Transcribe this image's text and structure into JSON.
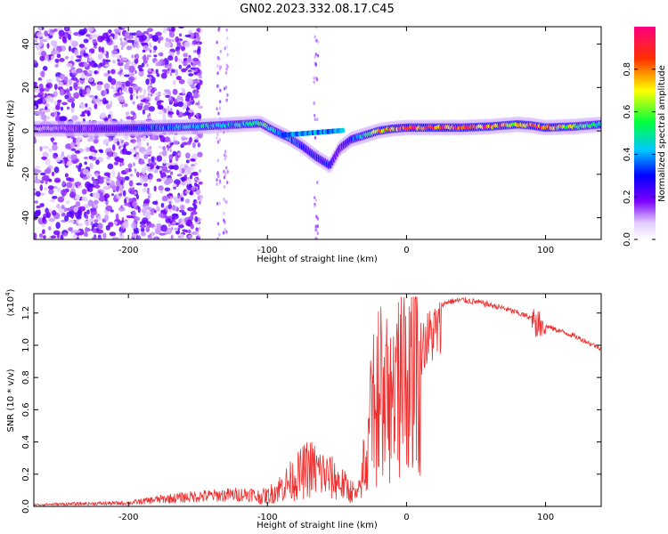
{
  "figure_title": "GN02.2023.332.08.17.C45",
  "chart_data": [
    {
      "type": "heatmap",
      "title": "GN02.2023.332.08.17.C45",
      "xlabel": "Height of straight line (km)",
      "ylabel": "Frequency (Hz)",
      "xlim": [
        -268,
        140
      ],
      "ylim": [
        -50,
        48
      ],
      "x_ticks": [
        -200,
        -100,
        0,
        100
      ],
      "y_ticks": [
        -40,
        -20,
        0,
        20,
        40
      ],
      "grid": false,
      "colorbar": {
        "label": "Normalized spectral amplitude",
        "range": [
          0,
          1
        ],
        "ticks": [
          "0.0",
          "0.2",
          "0.4",
          "0.6",
          "0.8"
        ],
        "tick_values": [
          0,
          0.2,
          0.4,
          0.6,
          0.8
        ],
        "colors": [
          "#ffffff",
          "#7a00ff",
          "#0000ff",
          "#00c8ff",
          "#00ff40",
          "#ffff00",
          "#ff3000",
          "#ff0080"
        ]
      },
      "ridge": {
        "description_points_x": [
          -268,
          -220,
          -180,
          -150,
          -120,
          -105,
          -95,
          -85,
          -75,
          -65,
          -55,
          -48,
          -40,
          -30,
          -20,
          -10,
          0,
          20,
          40,
          60,
          80,
          90,
          100,
          120,
          140
        ],
        "frequency_y": [
          1,
          1,
          1.5,
          2,
          3,
          3.5,
          0,
          -3,
          -7,
          -12,
          -16,
          -8,
          -4,
          -2,
          0,
          1,
          1.5,
          1.5,
          1.5,
          2,
          3,
          2.5,
          1.5,
          2,
          3
        ],
        "amplitude": [
          0.1,
          0.2,
          0.35,
          0.45,
          0.45,
          0.55,
          0.45,
          0.4,
          0.3,
          0.3,
          0.3,
          0.2,
          0.3,
          0.5,
          0.7,
          0.85,
          0.9,
          0.95,
          0.95,
          0.9,
          0.75,
          0.85,
          0.9,
          0.6,
          0.5
        ]
      }
    },
    {
      "type": "line",
      "xlabel": "Height of straight line (km)",
      "ylabel": "SNR (10 * v/v)",
      "y_scale_label": "(x10",
      "y_scale_exponent": "4",
      "xlim": [
        -268,
        140
      ],
      "ylim": [
        0,
        1.32
      ],
      "x_ticks": [
        -200,
        -100,
        0,
        100
      ],
      "y_ticks": [
        0.0,
        0.2,
        0.4,
        0.6,
        0.8,
        1.0,
        1.2
      ],
      "y_tick_labels": [
        "0.0",
        "0.2",
        "0.4",
        "0.6",
        "0.8",
        "1.0",
        "1.2"
      ],
      "grid": false,
      "color": "#ee3030",
      "envelope_x": [
        -268,
        -240,
        -200,
        -180,
        -150,
        -120,
        -100,
        -90,
        -80,
        -70,
        -60,
        -50,
        -40,
        -35,
        -30,
        -25,
        -20,
        -15,
        -10,
        -5,
        0,
        10,
        20,
        30,
        40,
        50,
        60,
        70,
        80,
        90,
        95,
        100,
        110,
        120,
        130,
        140
      ],
      "envelope_y": [
        0.01,
        0.015,
        0.02,
        0.04,
        0.06,
        0.07,
        0.08,
        0.15,
        0.22,
        0.3,
        0.25,
        0.2,
        0.12,
        0.1,
        0.35,
        0.65,
        0.85,
        0.75,
        0.8,
        0.9,
        0.95,
        1.12,
        1.23,
        1.27,
        1.28,
        1.27,
        1.25,
        1.23,
        1.2,
        1.17,
        1.15,
        1.12,
        1.09,
        1.06,
        1.02,
        0.98
      ]
    }
  ]
}
